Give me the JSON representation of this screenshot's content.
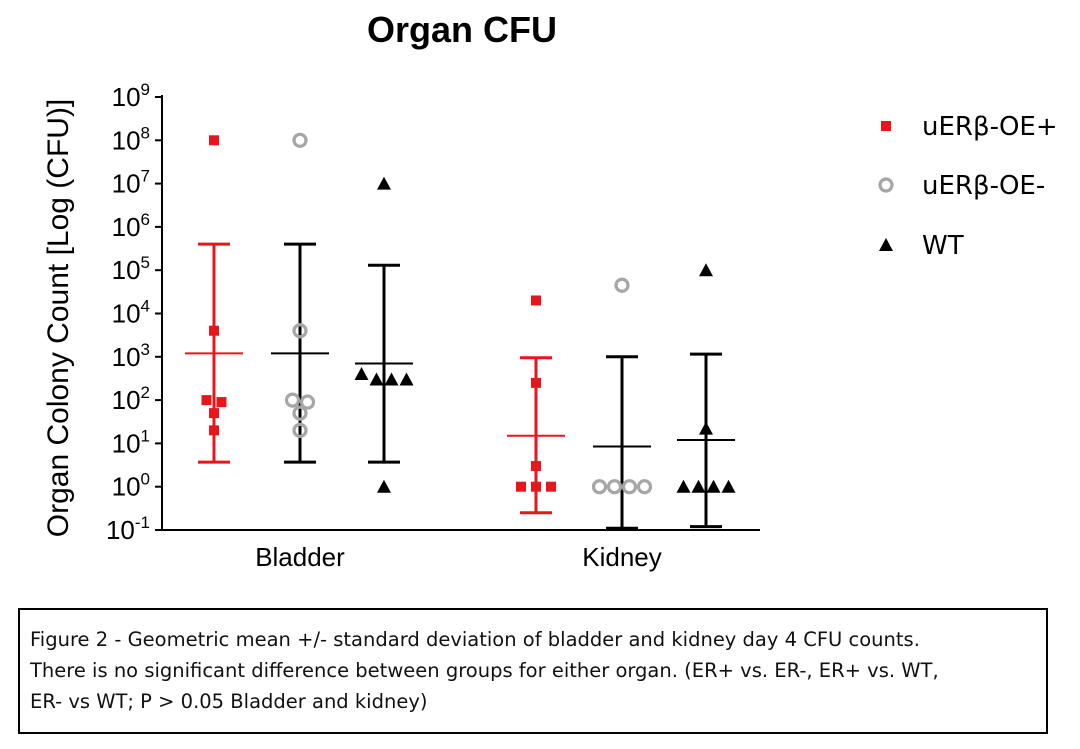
{
  "chart_data": {
    "type": "scatter",
    "title": "Organ CFU",
    "ylabel": "Organ Colony Count [Log (CFU)]",
    "yscale": "log",
    "ylim": [
      0.1,
      1000000000
    ],
    "y_ticks": [
      {
        "value": 0.1,
        "base": "10",
        "exp": "-1"
      },
      {
        "value": 1,
        "base": "10",
        "exp": "0"
      },
      {
        "value": 10,
        "base": "10",
        "exp": "1"
      },
      {
        "value": 100,
        "base": "10",
        "exp": "2"
      },
      {
        "value": 1000,
        "base": "10",
        "exp": "3"
      },
      {
        "value": 10000,
        "base": "10",
        "exp": "4"
      },
      {
        "value": 100000,
        "base": "10",
        "exp": "5"
      },
      {
        "value": 1000000,
        "base": "10",
        "exp": "6"
      },
      {
        "value": 10000000,
        "base": "10",
        "exp": "7"
      },
      {
        "value": 100000000,
        "base": "10",
        "exp": "8"
      },
      {
        "value": 1000000000,
        "base": "10",
        "exp": "9"
      }
    ],
    "categories": [
      "Bladder",
      "Kidney"
    ],
    "grid": false,
    "legend_position": "right",
    "series": [
      {
        "name": "uERβ-OE+",
        "marker": "square",
        "color": "#e8161b",
        "error_color": "#e8161b",
        "groups": [
          {
            "category": "Bladder",
            "points": [
              100000000,
              4000,
              100,
              90,
              50,
              20
            ],
            "mean": 1200,
            "upper": 400000,
            "lower": 3.7
          },
          {
            "category": "Kidney",
            "points": [
              20000,
              250,
              3,
              1,
              1,
              1
            ],
            "mean": 15,
            "upper": 950,
            "lower": 0.25
          }
        ]
      },
      {
        "name": "uERβ-OE-",
        "marker": "open-circle",
        "color": "#a6a6a6",
        "error_color": "#000000",
        "groups": [
          {
            "category": "Bladder",
            "points": [
              100000000,
              4000,
              100,
              90,
              50,
              20
            ],
            "mean": 1200,
            "upper": 400000,
            "lower": 3.7
          },
          {
            "category": "Kidney",
            "points": [
              45000,
              1,
              1,
              1,
              1
            ],
            "mean": 8.5,
            "upper": 1000,
            "lower": 0.11
          }
        ]
      },
      {
        "name": "WT",
        "marker": "triangle",
        "color": "#000000",
        "error_color": "#000000",
        "groups": [
          {
            "category": "Bladder",
            "points": [
              10000000,
              400,
              300,
              300,
              300,
              1
            ],
            "mean": 700,
            "upper": 130000,
            "lower": 3.7
          },
          {
            "category": "Kidney",
            "points": [
              100000,
              22,
              1,
              1,
              1,
              1
            ],
            "mean": 12,
            "upper": 1150,
            "lower": 0.12
          }
        ]
      }
    ]
  },
  "caption": {
    "lines": [
      "Figure 2 - Geometric mean +/- standard deviation of bladder and kidney day 4 CFU counts.",
      "There is no significant difference between groups for either organ. (ER+ vs. ER-, ER+ vs. WT,",
      "ER- vs WT; P > 0.05 Bladder and kidney)"
    ]
  }
}
